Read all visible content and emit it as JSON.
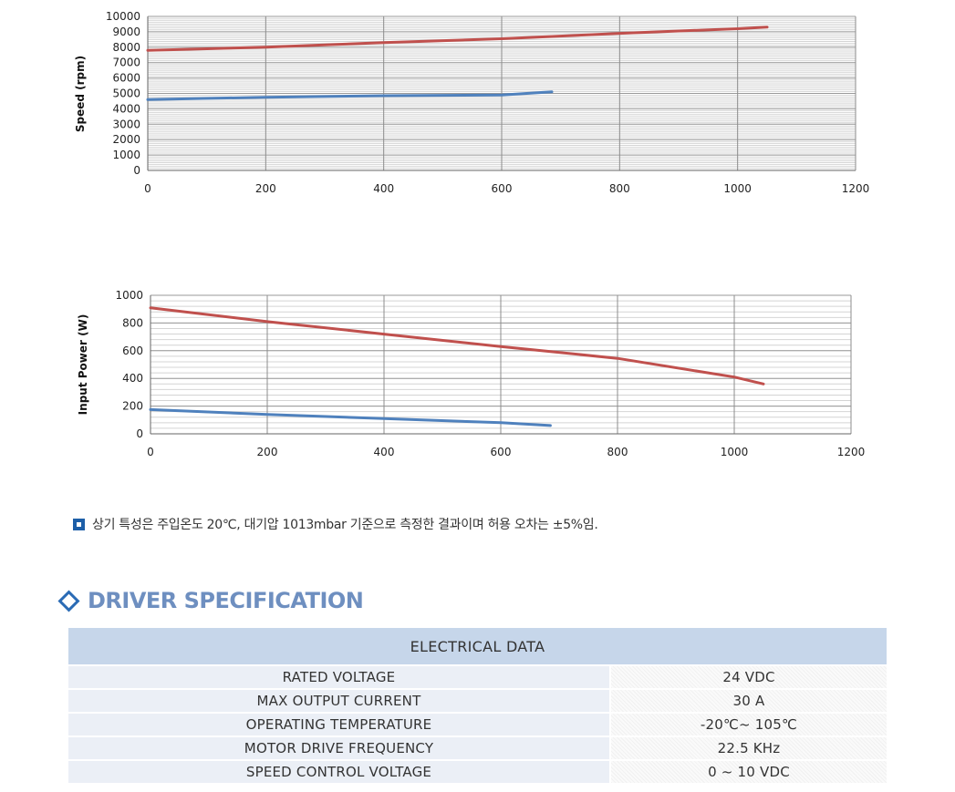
{
  "chart_data": [
    {
      "type": "line",
      "title": "",
      "xlabel": "",
      "ylabel": "Speed (rpm)",
      "xlim": [
        0,
        1200
      ],
      "ylim": [
        0,
        10000
      ],
      "xticks": [
        0,
        200,
        400,
        600,
        800,
        1000,
        1200
      ],
      "yticks": [
        0,
        1000,
        2000,
        3000,
        4000,
        5000,
        6000,
        7000,
        8000,
        9000,
        10000
      ],
      "grid": true,
      "series": [
        {
          "color": "#c0504d",
          "points": [
            [
              0,
              7800
            ],
            [
              200,
              8000
            ],
            [
              400,
              8300
            ],
            [
              600,
              8550
            ],
            [
              800,
              8900
            ],
            [
              1000,
              9200
            ],
            [
              1050,
              9300
            ]
          ]
        },
        {
          "color": "#4f81bd",
          "points": [
            [
              0,
              4600
            ],
            [
              200,
              4750
            ],
            [
              400,
              4850
            ],
            [
              600,
              4900
            ],
            [
              685,
              5100
            ]
          ]
        }
      ]
    },
    {
      "type": "line",
      "title": "",
      "xlabel": "",
      "ylabel": "Input Power (W)",
      "xlim": [
        0,
        1200
      ],
      "ylim": [
        0,
        1000
      ],
      "xticks": [
        0,
        200,
        400,
        600,
        800,
        1000,
        1200
      ],
      "yticks": [
        0,
        200,
        400,
        600,
        800,
        1000
      ],
      "grid": true,
      "series": [
        {
          "color": "#c0504d",
          "points": [
            [
              0,
              910
            ],
            [
              200,
              810
            ],
            [
              400,
              720
            ],
            [
              600,
              630
            ],
            [
              800,
              545
            ],
            [
              1000,
              410
            ],
            [
              1050,
              360
            ]
          ]
        },
        {
          "color": "#4f81bd",
          "points": [
            [
              0,
              175
            ],
            [
              200,
              140
            ],
            [
              400,
              110
            ],
            [
              600,
              80
            ],
            [
              685,
              60
            ]
          ]
        }
      ]
    }
  ],
  "note": {
    "text": "상기 특성은 주입온도 20℃, 대기압 1013mbar 기준으로 측정한 결과이며 허용 오차는 ±5%임."
  },
  "section": {
    "title": "DRIVER SPECIFICATION"
  },
  "table": {
    "header": "ELECTRICAL DATA",
    "rows": [
      {
        "label": "RATED VOLTAGE",
        "value": "24 VDC"
      },
      {
        "label": "MAX OUTPUT CURRENT",
        "value": "30 A"
      },
      {
        "label": "OPERATING TEMPERATURE",
        "value": "-20℃~ 105℃"
      },
      {
        "label": "MOTOR DRIVE FREQUENCY",
        "value": "22.5 KHz"
      },
      {
        "label": "SPEED CONTROL VOLTAGE",
        "value": "0 ~ 10 VDC"
      }
    ]
  }
}
